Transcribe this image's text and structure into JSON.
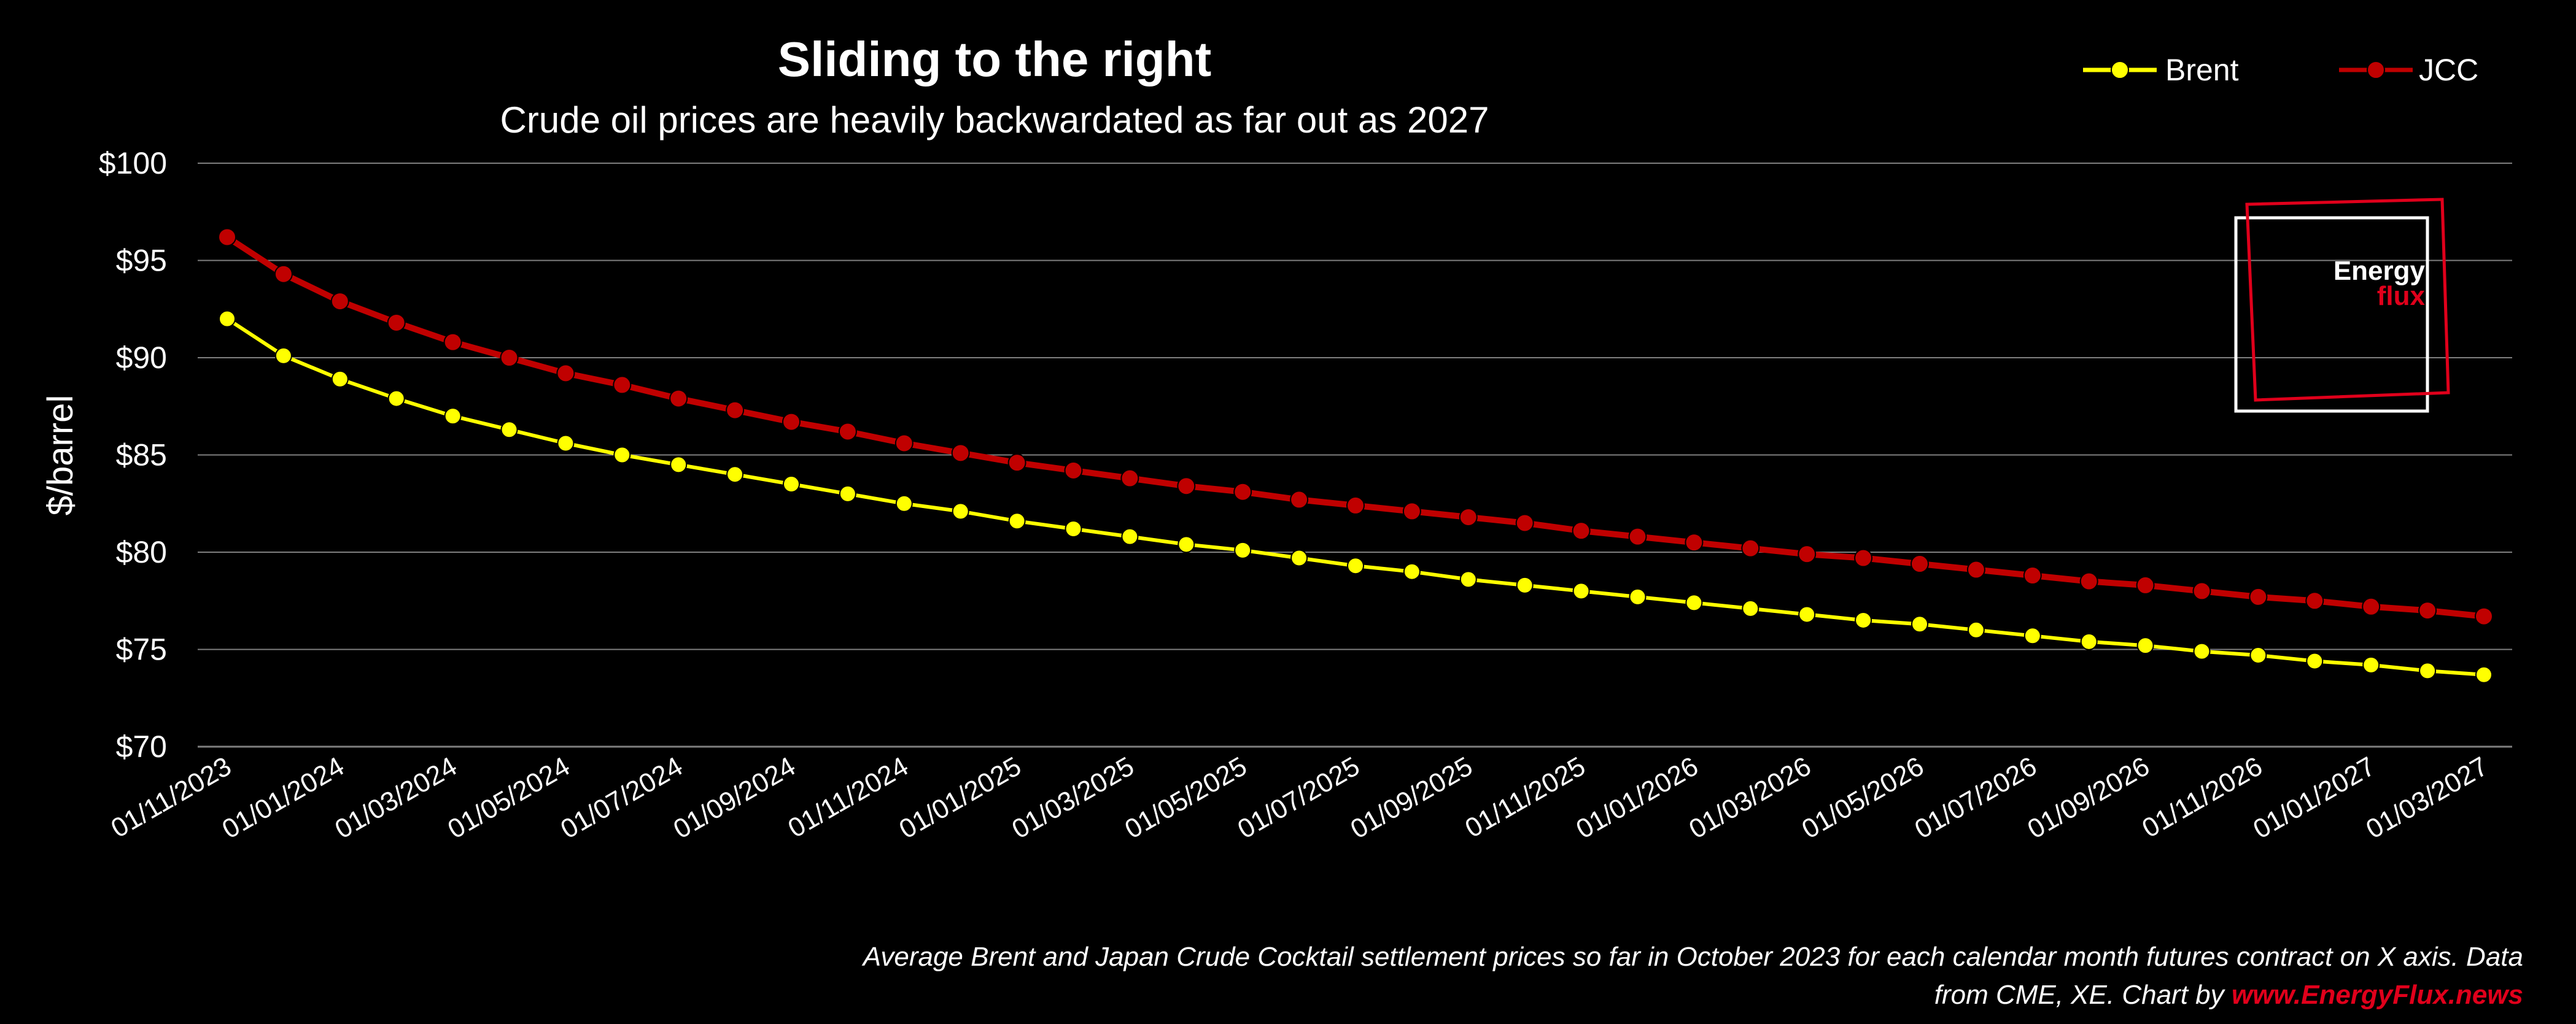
{
  "chart_data": {
    "type": "line",
    "title": "Sliding to the right",
    "subtitle": "Crude oil prices are heavily backwardated as far out as 2027",
    "ylabel": "$/barrel",
    "xlabel": "",
    "ylim": [
      70,
      100
    ],
    "ytick_labels": [
      "$100",
      "$95",
      "$90",
      "$85",
      "$80",
      "$75",
      "$70"
    ],
    "yticks": [
      100,
      95,
      90,
      85,
      80,
      75,
      70
    ],
    "grid": true,
    "legend_position": "top-right",
    "x": [
      "01/11/2023",
      "01/12/2023",
      "01/01/2024",
      "01/02/2024",
      "01/03/2024",
      "01/04/2024",
      "01/05/2024",
      "01/06/2024",
      "01/07/2024",
      "01/08/2024",
      "01/09/2024",
      "01/10/2024",
      "01/11/2024",
      "01/12/2024",
      "01/01/2025",
      "01/02/2025",
      "01/03/2025",
      "01/04/2025",
      "01/05/2025",
      "01/06/2025",
      "01/07/2025",
      "01/08/2025",
      "01/09/2025",
      "01/10/2025",
      "01/11/2025",
      "01/12/2025",
      "01/01/2026",
      "01/02/2026",
      "01/03/2026",
      "01/04/2026",
      "01/05/2026",
      "01/06/2026",
      "01/07/2026",
      "01/08/2026",
      "01/09/2026",
      "01/10/2026",
      "01/11/2026",
      "01/12/2026",
      "01/01/2027",
      "01/02/2027",
      "01/03/2027"
    ],
    "x_tick_labels": [
      "01/11/2023",
      "01/01/2024",
      "01/03/2024",
      "01/05/2024",
      "01/07/2024",
      "01/09/2024",
      "01/11/2024",
      "01/01/2025",
      "01/03/2025",
      "01/05/2025",
      "01/07/2025",
      "01/09/2025",
      "01/11/2025",
      "01/01/2026",
      "01/03/2026",
      "01/05/2026",
      "01/07/2026",
      "01/09/2026",
      "01/11/2026",
      "01/01/2027",
      "01/03/2027"
    ],
    "series": [
      {
        "name": "Brent",
        "color": "#ffff00",
        "values": [
          92.0,
          90.1,
          88.9,
          87.9,
          87.0,
          86.3,
          85.6,
          85.0,
          84.5,
          84.0,
          83.5,
          83.0,
          82.5,
          82.1,
          81.6,
          81.2,
          80.8,
          80.4,
          80.1,
          79.7,
          79.3,
          79.0,
          78.6,
          78.3,
          78.0,
          77.7,
          77.4,
          77.1,
          76.8,
          76.5,
          76.3,
          76.0,
          75.7,
          75.4,
          75.2,
          74.9,
          74.7,
          74.4,
          74.2,
          73.9,
          73.7
        ]
      },
      {
        "name": "JCC",
        "color": "#c00000",
        "values": [
          96.2,
          94.3,
          92.9,
          91.8,
          90.8,
          90.0,
          89.2,
          88.6,
          87.9,
          87.3,
          86.7,
          86.2,
          85.6,
          85.1,
          84.6,
          84.2,
          83.8,
          83.4,
          83.1,
          82.7,
          82.4,
          82.1,
          81.8,
          81.5,
          81.1,
          80.8,
          80.5,
          80.2,
          79.9,
          79.7,
          79.4,
          79.1,
          78.8,
          78.5,
          78.3,
          78.0,
          77.7,
          77.5,
          77.2,
          77.0,
          76.7
        ]
      }
    ]
  },
  "logo": {
    "line1": "Energy",
    "line2": "flux"
  },
  "footer": {
    "line1": "Average Brent and Japan Crude Cocktail settlement prices so far in October 2023 for each calendar month futures contract on X axis. Data",
    "line2_text": "from CME, XE. Chart by ",
    "line2_link": "www.EnergyFlux.news"
  },
  "colors": {
    "background": "#000000",
    "grid": "#7f7f7f",
    "brand_red": "#e0001b"
  }
}
